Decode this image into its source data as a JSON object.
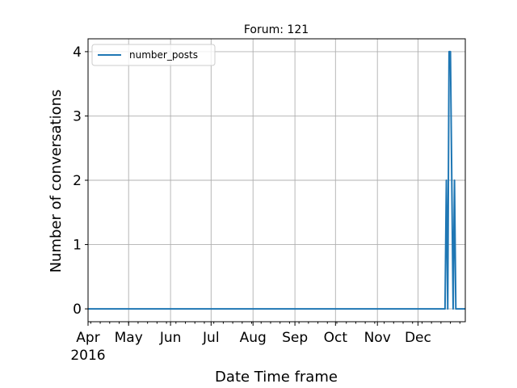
{
  "chart_data": {
    "type": "line",
    "title": "Forum: 121",
    "xlabel": "Date Time frame",
    "ylabel": "Number of conversations",
    "x_range": [
      "2016-04-01",
      "2017-01-05"
    ],
    "ylim": [
      -0.2,
      4.2
    ],
    "yticks": [
      0,
      1,
      2,
      3,
      4
    ],
    "xticks": [
      {
        "date": "2016-04-01",
        "label": "Apr",
        "sublabel": "2016"
      },
      {
        "date": "2016-05-01",
        "label": "May"
      },
      {
        "date": "2016-06-01",
        "label": "Jun"
      },
      {
        "date": "2016-07-01",
        "label": "Jul"
      },
      {
        "date": "2016-08-01",
        "label": "Aug"
      },
      {
        "date": "2016-09-01",
        "label": "Sep"
      },
      {
        "date": "2016-10-01",
        "label": "Oct"
      },
      {
        "date": "2016-11-01",
        "label": "Nov"
      },
      {
        "date": "2016-12-01",
        "label": "Dec"
      }
    ],
    "grid": true,
    "legend": "upper-left",
    "series": [
      {
        "name": "number_posts",
        "color": "#1f77b4",
        "points": [
          {
            "x": "2016-04-01",
            "y": 0
          },
          {
            "x": "2016-12-21",
            "y": 0
          },
          {
            "x": "2016-12-22",
            "y": 2
          },
          {
            "x": "2016-12-23",
            "y": 0
          },
          {
            "x": "2016-12-24",
            "y": 4
          },
          {
            "x": "2016-12-25",
            "y": 4
          },
          {
            "x": "2016-12-26",
            "y": 2
          },
          {
            "x": "2016-12-27",
            "y": 0
          },
          {
            "x": "2016-12-28",
            "y": 2
          },
          {
            "x": "2016-12-29",
            "y": 0
          },
          {
            "x": "2017-01-05",
            "y": 0
          }
        ]
      }
    ]
  }
}
